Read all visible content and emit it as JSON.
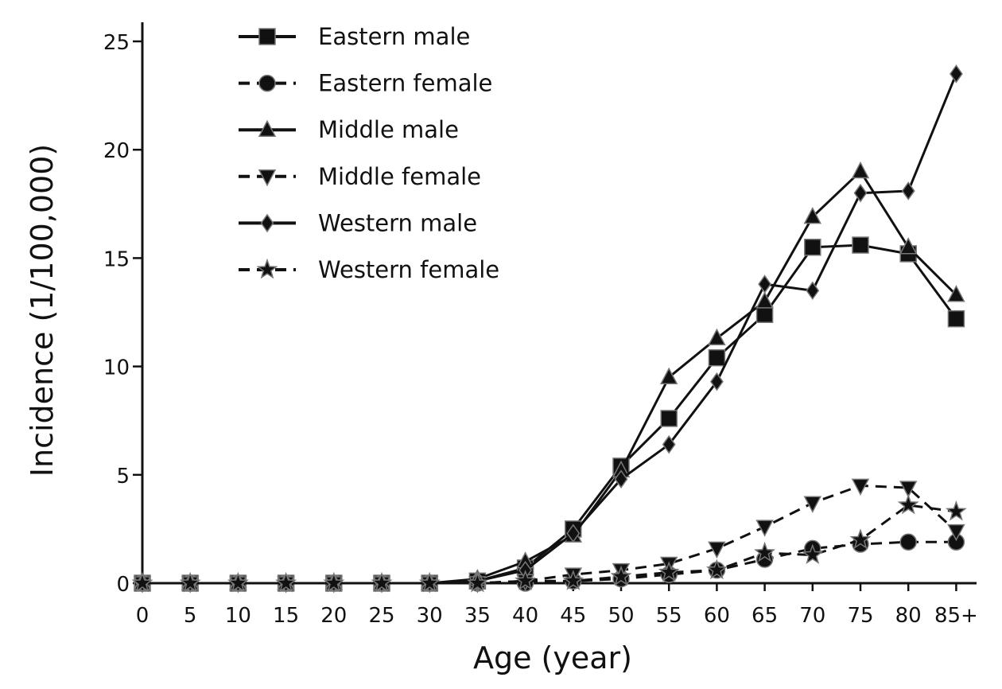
{
  "chart_data": {
    "type": "line",
    "xlabel": "Age (year)",
    "ylabel": "Incidence (1/100,000)",
    "categories": [
      "0",
      "5",
      "10",
      "15",
      "20",
      "25",
      "30",
      "35",
      "40",
      "45",
      "50",
      "55",
      "60",
      "65",
      "70",
      "75",
      "80",
      "85+"
    ],
    "ylim": [
      0,
      25
    ],
    "yticks": [
      0,
      5,
      10,
      15,
      20,
      25
    ],
    "grid": false,
    "legend_position": "top-left",
    "series": [
      {
        "name": "Eastern male",
        "marker": "square",
        "dash": "solid",
        "values": [
          0,
          0,
          0,
          0,
          0,
          0,
          0,
          0.1,
          0.7,
          2.5,
          5.4,
          7.6,
          10.4,
          12.4,
          15.5,
          15.6,
          15.2,
          12.2
        ]
      },
      {
        "name": "Eastern female",
        "marker": "circle",
        "dash": "dashed",
        "values": [
          0,
          0,
          0,
          0,
          0,
          0,
          0,
          0,
          0,
          0.1,
          0.2,
          0.4,
          0.6,
          1.1,
          1.6,
          1.8,
          1.9,
          1.9
        ]
      },
      {
        "name": "Middle male",
        "marker": "triangle-up",
        "dash": "solid",
        "values": [
          0,
          0,
          0,
          0,
          0,
          0,
          0,
          0.2,
          1.0,
          2.2,
          5.2,
          9.5,
          11.3,
          13.0,
          16.9,
          19.0,
          15.5,
          13.3
        ]
      },
      {
        "name": "Middle female",
        "marker": "triangle-down",
        "dash": "dashed",
        "values": [
          0,
          0,
          0,
          0,
          0,
          0,
          0,
          0,
          0.1,
          0.4,
          0.6,
          0.9,
          1.6,
          2.6,
          3.7,
          4.5,
          4.4,
          2.4
        ]
      },
      {
        "name": "Western male",
        "marker": "diamond",
        "dash": "solid",
        "values": [
          0,
          0,
          0,
          0,
          0,
          0,
          0,
          0.1,
          0.6,
          2.3,
          4.8,
          6.4,
          9.3,
          13.8,
          13.5,
          18.0,
          18.1,
          23.5
        ]
      },
      {
        "name": "Western female",
        "marker": "star",
        "dash": "dashed",
        "values": [
          0,
          0,
          0,
          0,
          0,
          0,
          0,
          0,
          0.1,
          0.1,
          0.3,
          0.5,
          0.6,
          1.4,
          1.3,
          2.0,
          3.6,
          3.3
        ]
      }
    ],
    "colors": {
      "line": "#111111",
      "marker": "#111111",
      "marker_stroke": "#777777"
    }
  }
}
